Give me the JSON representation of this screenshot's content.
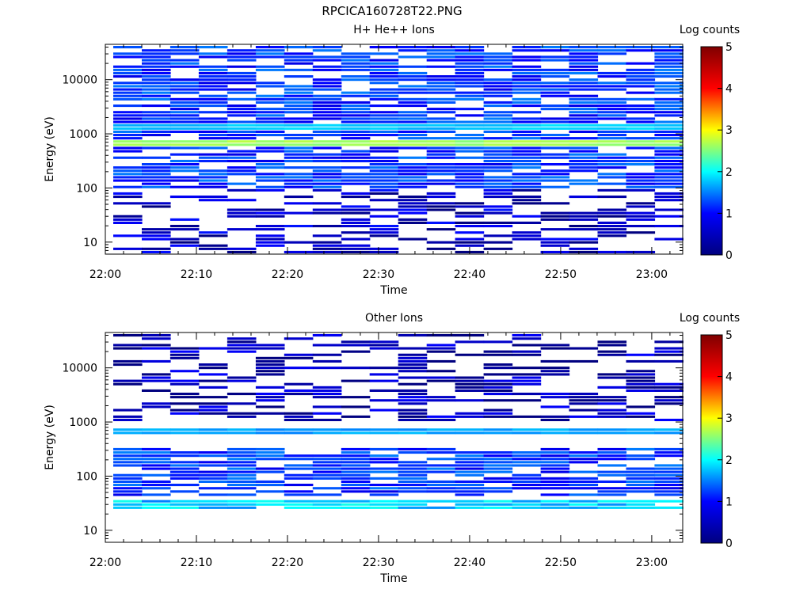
{
  "figure": {
    "title": "RPCICA160728T22.PNG"
  },
  "colorbar": {
    "label": "Log counts",
    "min": 0,
    "max": 5,
    "ticks": [
      "0",
      "1",
      "2",
      "3",
      "4",
      "5"
    ],
    "colormap": [
      "#00007f",
      "#0000ff",
      "#00ffff",
      "#ffff00",
      "#ff0000",
      "#7f0000"
    ]
  },
  "chart_data": [
    {
      "type": "heatmap",
      "title": "H+ He++ Ions",
      "xlabel": "Time",
      "ylabel": "Energy (eV)",
      "yscale": "log",
      "ylim": [
        6,
        45000
      ],
      "x_ticks": [
        "22:00",
        "22:10",
        "22:20",
        "22:30",
        "22:40",
        "22:50",
        "23:00"
      ],
      "y_ticks": [
        "10",
        "100",
        "1000",
        "10000"
      ],
      "time_range": [
        "22:00",
        "23:01"
      ],
      "zlabel": "Log counts",
      "zlim": [
        0,
        5
      ],
      "features": [
        {
          "energy_eV": 700,
          "log_counts": 2.6,
          "note": "bright band"
        },
        {
          "energy_eV": 1300,
          "log_counts": 1.5,
          "note": "cyan band"
        },
        {
          "energy_range_eV": [
            100,
            45000
          ],
          "log_counts": 0.8,
          "note": "broad blue background"
        },
        {
          "energy_range_eV": [
            6,
            100
          ],
          "log_counts": 0.3,
          "note": "sparse dark blue"
        }
      ]
    },
    {
      "type": "heatmap",
      "title": "Other Ions",
      "xlabel": "Time",
      "ylabel": "Energy (eV)",
      "yscale": "log",
      "ylim": [
        6,
        45000
      ],
      "x_ticks": [
        "22:00",
        "22:10",
        "22:20",
        "22:30",
        "22:40",
        "22:50",
        "23:00"
      ],
      "y_ticks": [
        "10",
        "100",
        "1000",
        "10000"
      ],
      "time_range": [
        "22:00",
        "23:01"
      ],
      "zlabel": "Log counts",
      "zlim": [
        0,
        5
      ],
      "features": [
        {
          "energy_range_eV": [
            25,
            38
          ],
          "log_counts": 1.5,
          "note": "bright cyan band"
        },
        {
          "energy_eV": 680,
          "log_counts": 1.3,
          "note": "cyan band"
        },
        {
          "energy_range_eV": [
            40,
            350
          ],
          "log_counts": 0.8,
          "note": "dense blue"
        },
        {
          "energy_range_eV": [
            1000,
            45000
          ],
          "log_counts": 0.2,
          "note": "sparse dark lines"
        }
      ]
    }
  ]
}
